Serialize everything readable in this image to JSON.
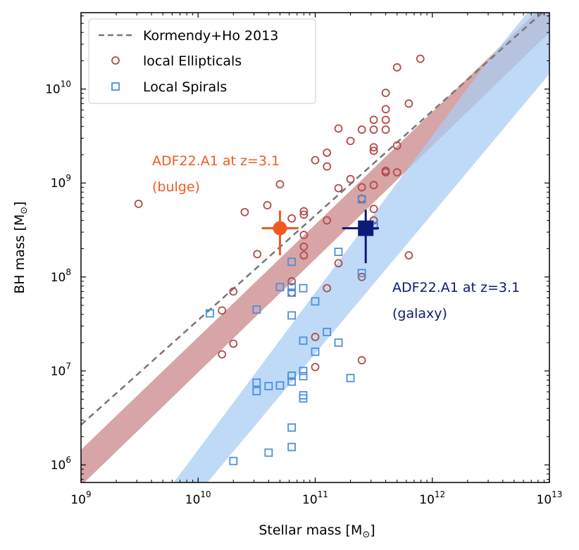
{
  "chart_data": {
    "type": "scatter",
    "xlabel": "Stellar mass [M",
    "xlabel_sub": "⊙",
    "xlabel_end": "]",
    "ylabel": "BH mass [M",
    "ylabel_sub": "⊙",
    "ylabel_end": "]",
    "x_scale": "log",
    "y_scale": "log",
    "xlim": [
      1000000000.0,
      10000000000000.0
    ],
    "ylim": [
      650000.0,
      65000000000.0
    ],
    "grid": false,
    "legend_position": "top-left",
    "x_ticks": [
      {
        "value": 1000000000.0,
        "base": "10",
        "exp": "9"
      },
      {
        "value": 10000000000.0,
        "base": "10",
        "exp": "10"
      },
      {
        "value": 100000000000.0,
        "base": "10",
        "exp": "11"
      },
      {
        "value": 1000000000000.0,
        "base": "10",
        "exp": "12"
      },
      {
        "value": 10000000000000.0,
        "base": "10",
        "exp": "13"
      }
    ],
    "y_ticks": [
      {
        "value": 1000000.0,
        "base": "10",
        "exp": "6"
      },
      {
        "value": 10000000.0,
        "base": "10",
        "exp": "7"
      },
      {
        "value": 100000000.0,
        "base": "10",
        "exp": "8"
      },
      {
        "value": 1000000000.0,
        "base": "10",
        "exp": "9"
      },
      {
        "value": 10000000000.0,
        "base": "10",
        "exp": "10"
      }
    ],
    "legend": [
      {
        "key": "kh",
        "label": "Kormendy+Ho 2013"
      },
      {
        "key": "ell",
        "label": "local Ellipticals"
      },
      {
        "key": "spi",
        "label": "Local Spirals"
      }
    ],
    "colors": {
      "kh": "#777777",
      "ellipticals": "#b24a4a",
      "spirals": "#4a8fe0",
      "red_band": "#c98787",
      "blue_band": "#a9cdf3",
      "adf_bulge": "#f05a22",
      "adf_galaxy": "#0d1a7a"
    },
    "kormendy_ho": {
      "x": [
        1000000000.0,
        10000000000000.0
      ],
      "y": [
        2670000.0,
        76000000000.0
      ]
    },
    "red_band": {
      "x": [
        1000000000.0,
        10000000000000.0
      ],
      "lower": [
        600000.0,
        40000000000.0
      ],
      "upper": [
        1450000.0,
        90000000000.0
      ]
    },
    "blue_band": {
      "upper": [
        [
          6200000000.0,
          650000.0
        ],
        [
          3000000000000.0,
          20000000000.0
        ],
        [
          6500000000000.0,
          65000000000.0
        ],
        [
          10000000000000.0,
          65000000000.0
        ]
      ],
      "lower": [
        [
          10000000000000.0,
          14500000000.0
        ],
        [
          12000000000.0,
          650000.0
        ]
      ]
    },
    "series": [
      {
        "name": "local Ellipticals",
        "marker": "circle",
        "points": [
          [
            3100000000.0,
            600000000.0
          ],
          [
            16000000000.0,
            44000000.0
          ],
          [
            16000000000.0,
            15000000.0
          ],
          [
            20000000000.0,
            70000000.0
          ],
          [
            20000000000.0,
            19500000.0
          ],
          [
            25000000000.0,
            490000000.0
          ],
          [
            32000000000.0,
            175000000.0
          ],
          [
            39000000000.0,
            580000000.0
          ],
          [
            50000000000.0,
            970000000.0
          ],
          [
            63000000000.0,
            420000000.0
          ],
          [
            63000000000.0,
            90000000.0
          ],
          [
            63000000000.0,
            68000000.0
          ],
          [
            80000000000.0,
            460000000.0
          ],
          [
            80000000000.0,
            500000000.0
          ],
          [
            80000000000.0,
            280000000.0
          ],
          [
            80000000000.0,
            210000000.0
          ],
          [
            80000000000.0,
            170000000.0
          ],
          [
            100000000000.0,
            1750000000.0
          ],
          [
            100000000000.0,
            23000000.0
          ],
          [
            100000000000.0,
            11000000.0
          ],
          [
            126000000000.0,
            2100000000.0
          ],
          [
            126000000000.0,
            1500000000.0
          ],
          [
            126000000000.0,
            400000000.0
          ],
          [
            126000000000.0,
            76000000.0
          ],
          [
            158000000000.0,
            3800000000.0
          ],
          [
            158000000000.0,
            880000000.0
          ],
          [
            158000000000.0,
            140000000.0
          ],
          [
            200000000000.0,
            2800000000.0
          ],
          [
            200000000000.0,
            1100000000.0
          ],
          [
            250000000000.0,
            3700000000.0
          ],
          [
            250000000000.0,
            900000000.0
          ],
          [
            250000000000.0,
            680000000.0
          ],
          [
            250000000000.0,
            100000000.0
          ],
          [
            250000000000.0,
            13000000.0
          ],
          [
            316000000000.0,
            4700000000.0
          ],
          [
            316000000000.0,
            3700000000.0
          ],
          [
            316000000000.0,
            2400000000.0
          ],
          [
            316000000000.0,
            2200000000.0
          ],
          [
            316000000000.0,
            950000000.0
          ],
          [
            316000000000.0,
            530000000.0
          ],
          [
            316000000000.0,
            400000000.0
          ],
          [
            400000000000.0,
            9100000000.0
          ],
          [
            400000000000.0,
            6100000000.0
          ],
          [
            400000000000.0,
            4700000000.0
          ],
          [
            400000000000.0,
            3700000000.0
          ],
          [
            400000000000.0,
            1350000000.0
          ],
          [
            400000000000.0,
            1300000000.0
          ],
          [
            500000000000.0,
            17000000000.0
          ],
          [
            500000000000.0,
            2500000000.0
          ],
          [
            500000000000.0,
            1300000000.0
          ],
          [
            630000000000.0,
            7000000000.0
          ],
          [
            630000000000.0,
            170000000.0
          ],
          [
            790000000000.0,
            21000000000.0
          ]
        ]
      },
      {
        "name": "Local Spirals",
        "marker": "square",
        "points": [
          [
            12600000000.0,
            41000000.0
          ],
          [
            20000000000.0,
            1100000.0
          ],
          [
            31600000000.0,
            45000000.0
          ],
          [
            31600000000.0,
            7500000.0
          ],
          [
            31600000000.0,
            6100000.0
          ],
          [
            40000000000.0,
            6900000.0
          ],
          [
            40000000000.0,
            1350000.0
          ],
          [
            50000000000.0,
            78000000.0
          ],
          [
            50000000000.0,
            7000000.0
          ],
          [
            63000000000.0,
            145000000.0
          ],
          [
            63000000000.0,
            78000000.0
          ],
          [
            63000000000.0,
            68000000.0
          ],
          [
            63000000000.0,
            39000000.0
          ],
          [
            63000000000.0,
            8900000.0
          ],
          [
            63000000000.0,
            7700000.0
          ],
          [
            63000000000.0,
            2500000.0
          ],
          [
            63000000000.0,
            1550000.0
          ],
          [
            79000000000.0,
            76000000.0
          ],
          [
            79000000000.0,
            21000000.0
          ],
          [
            79000000000.0,
            10000000.0
          ],
          [
            79000000000.0,
            8800000.0
          ],
          [
            79000000000.0,
            5500000.0
          ],
          [
            79000000000.0,
            5100000.0
          ],
          [
            100000000000.0,
            55000000.0
          ],
          [
            100000000000.0,
            16000000.0
          ],
          [
            126000000000.0,
            26000000.0
          ],
          [
            158000000000.0,
            185000000.0
          ],
          [
            158000000000.0,
            20000000.0
          ],
          [
            200000000000.0,
            8400000.0
          ],
          [
            250000000000.0,
            670000000.0
          ],
          [
            250000000000.0,
            110000000.0
          ],
          [
            316000000000.0,
            350000000.0
          ]
        ]
      }
    ],
    "adf_bulge": {
      "label_line1": "ADF22.A1  at  z=3.1",
      "label_line2": "(bulge)",
      "x": 50000000000.0,
      "y": 330000000.0,
      "xerr": [
        35000000000.0,
        72000000000.0
      ],
      "yerr": [
        170000000.0,
        510000000.0
      ]
    },
    "adf_galaxy": {
      "label_line1": "ADF22.A1  at  z=3.1",
      "label_line2": "(galaxy)",
      "x": 270000000000.0,
      "y": 330000000.0,
      "xerr": [
        170000000000.0,
        350000000000.0
      ],
      "yerr": [
        140000000.0,
        520000000.0
      ]
    }
  }
}
